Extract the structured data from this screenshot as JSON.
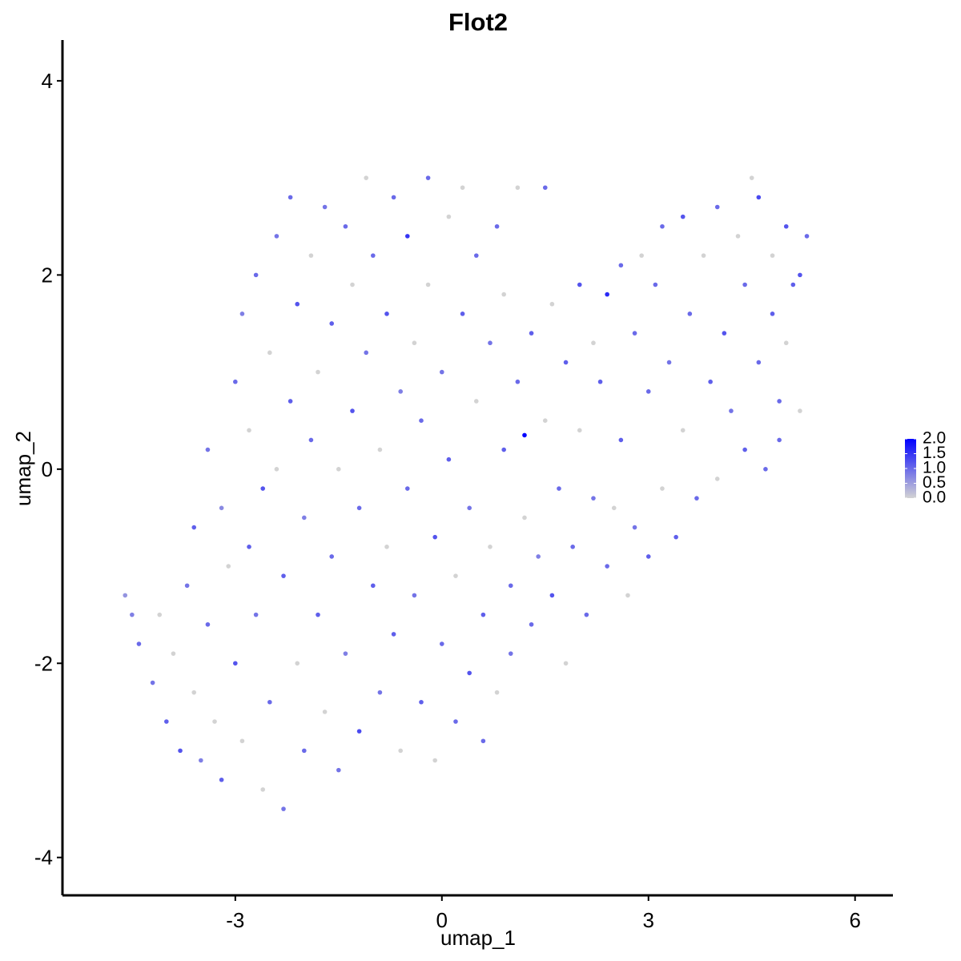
{
  "chart_data": {
    "type": "scatter",
    "title": "Flot2",
    "xlabel": "umap_1",
    "ylabel": "umap_2",
    "xlim": [
      -5.51,
      6.55
    ],
    "xticks": [
      -3,
      0,
      3,
      6
    ],
    "ylim": [
      -4.39,
      4.42
    ],
    "yticks": [
      -4,
      -2,
      0,
      2,
      4
    ],
    "x": [
      -4.6,
      -4.5,
      -4.4,
      -4.2,
      -4.1,
      -4.0,
      -3.9,
      -3.8,
      -3.7,
      -3.6,
      -3.6,
      -3.5,
      -3.4,
      -3.4,
      -3.3,
      -3.2,
      -3.2,
      -3.1,
      -3.0,
      -3.0,
      -2.9,
      -2.9,
      -2.8,
      -2.8,
      -2.7,
      -2.7,
      -2.6,
      -2.6,
      -2.5,
      -2.5,
      -2.4,
      -2.4,
      -2.3,
      -2.3,
      -2.2,
      -2.2,
      -2.1,
      -2.1,
      -2.0,
      -2.0,
      -1.9,
      -1.9,
      -1.8,
      -1.8,
      -1.7,
      -1.7,
      -1.6,
      -1.6,
      -1.5,
      -1.5,
      -1.4,
      -1.4,
      -1.3,
      -1.3,
      -1.2,
      -1.2,
      -1.1,
      -1.1,
      -1.0,
      -1.0,
      -0.9,
      -0.9,
      -0.8,
      -0.8,
      -0.7,
      -0.7,
      -0.6,
      -0.6,
      -0.5,
      -0.5,
      -0.4,
      -0.4,
      -0.3,
      -0.3,
      -0.2,
      -0.2,
      -0.1,
      -0.1,
      0.0,
      0.0,
      0.1,
      0.1,
      0.2,
      0.2,
      0.3,
      0.3,
      0.4,
      0.4,
      0.5,
      0.5,
      0.6,
      0.6,
      0.7,
      0.7,
      0.8,
      0.8,
      0.9,
      0.9,
      1.0,
      1.0,
      1.1,
      1.1,
      1.2,
      1.2,
      1.3,
      1.3,
      1.4,
      1.5,
      1.5,
      1.6,
      1.6,
      1.7,
      1.8,
      1.8,
      1.9,
      2.0,
      2.0,
      2.1,
      2.2,
      2.2,
      2.3,
      2.4,
      2.4,
      2.5,
      2.6,
      2.6,
      2.7,
      2.8,
      2.8,
      2.9,
      3.0,
      3.0,
      3.1,
      3.2,
      3.2,
      3.3,
      3.4,
      3.5,
      3.5,
      3.6,
      3.7,
      3.8,
      3.9,
      4.0,
      4.0,
      4.1,
      4.2,
      4.3,
      4.4,
      4.4,
      4.5,
      4.6,
      4.6,
      4.7,
      4.8,
      4.8,
      4.9,
      5.0,
      5.0,
      5.1,
      5.2,
      5.3,
      5.2,
      4.9
    ],
    "y": [
      -1.3,
      -1.5,
      -1.8,
      -2.2,
      -1.5,
      -2.6,
      -1.9,
      -2.9,
      -1.2,
      -0.6,
      -2.3,
      -3.0,
      -1.6,
      0.2,
      -2.6,
      -0.4,
      -3.2,
      -1.0,
      0.9,
      -2.0,
      1.6,
      -2.8,
      -0.8,
      0.4,
      2.0,
      -1.5,
      -3.3,
      -0.2,
      1.2,
      -2.4,
      2.4,
      0.0,
      -1.1,
      -3.5,
      2.8,
      0.7,
      -2.0,
      1.7,
      -0.5,
      -2.9,
      2.2,
      0.3,
      -1.5,
      1.0,
      2.7,
      -2.5,
      -0.9,
      1.5,
      0.0,
      -3.1,
      2.5,
      -1.9,
      0.6,
      1.9,
      -0.4,
      -2.7,
      3.0,
      1.2,
      -1.2,
      2.2,
      0.2,
      -2.3,
      1.6,
      -0.8,
      2.8,
      -1.7,
      0.8,
      -2.9,
      2.4,
      -0.2,
      1.3,
      -1.3,
      -2.4,
      0.5,
      3.0,
      1.9,
      -0.7,
      -3.0,
      1.0,
      -1.8,
      2.6,
      0.1,
      -1.1,
      -2.6,
      1.6,
      2.9,
      -0.4,
      -2.1,
      0.7,
      2.2,
      -1.5,
      -2.8,
      1.3,
      -0.8,
      2.5,
      -2.3,
      0.2,
      1.8,
      -1.2,
      -1.9,
      2.9,
      0.9,
      0.35,
      -0.5,
      1.4,
      -1.6,
      -0.9,
      2.9,
      0.5,
      -1.3,
      1.7,
      -0.2,
      -2.0,
      1.1,
      -0.8,
      1.9,
      0.4,
      -1.5,
      -0.3,
      1.3,
      0.9,
      1.8,
      -1.0,
      -0.4,
      2.1,
      0.3,
      -1.3,
      1.4,
      -0.6,
      2.2,
      0.8,
      -0.9,
      1.9,
      -0.2,
      2.5,
      1.1,
      -0.7,
      2.6,
      0.4,
      1.6,
      -0.3,
      2.2,
      0.9,
      2.7,
      -0.1,
      1.4,
      0.6,
      2.4,
      1.9,
      0.2,
      3.0,
      2.8,
      1.1,
      0.0,
      2.2,
      1.6,
      0.7,
      2.5,
      1.3,
      1.9,
      0.6,
      2.4,
      2.0,
      0.3
    ],
    "expression": [
      0.6,
      0.8,
      1.0,
      0.9,
      0,
      1.1,
      0,
      1.2,
      0.9,
      1.1,
      0,
      0.8,
      1.0,
      0.9,
      0,
      0.7,
      1.1,
      0,
      1.0,
      1.2,
      0.8,
      0,
      1.1,
      0,
      1.0,
      0.9,
      0,
      1.2,
      0,
      1.0,
      0.9,
      0,
      1.1,
      0.9,
      1.0,
      1.1,
      0,
      1.2,
      0.8,
      1.0,
      0,
      1.0,
      1.1,
      0,
      0.9,
      0,
      1.0,
      1.1,
      0,
      0.9,
      1.0,
      0.8,
      1.2,
      0,
      1.0,
      1.3,
      0,
      0.9,
      1.1,
      1.0,
      0,
      0.9,
      1.2,
      0,
      1.0,
      1.1,
      0.8,
      0,
      1.5,
      1.0,
      0,
      0.9,
      1.1,
      1.0,
      1.0,
      0,
      1.2,
      0,
      0.9,
      1.0,
      0,
      1.1,
      0,
      1.0,
      1.1,
      0,
      0.9,
      1.2,
      0,
      1.0,
      1.1,
      1.0,
      0.9,
      0,
      1.0,
      0,
      1.1,
      0,
      1.0,
      0.9,
      0,
      1.0,
      2.0,
      0,
      1.1,
      1.0,
      0.8,
      1.0,
      0,
      1.2,
      0,
      1.0,
      0,
      1.1,
      1.0,
      1.2,
      0,
      1.0,
      0.9,
      0,
      1.1,
      1.6,
      1.0,
      0,
      1.0,
      1.1,
      0,
      1.0,
      0.9,
      0,
      1.0,
      1.1,
      1.0,
      0,
      1.0,
      0.9,
      1.1,
      1.2,
      0,
      1.0,
      1.0,
      0,
      1.1,
      1.0,
      0,
      1.2,
      0.9,
      0,
      1.0,
      1.1,
      0,
      1.3,
      1.0,
      1.0,
      0,
      1.1,
      1.0,
      1.2,
      0,
      1.1,
      0,
      1.0,
      1.2,
      1.0
    ],
    "colorscale": {
      "low": "#d3d3d3",
      "high": "#0000ff"
    },
    "clim": [
      0,
      2
    ],
    "cticks": [
      {
        "value": 0,
        "label": "0.0"
      },
      {
        "value": 0.5,
        "label": "0.5"
      },
      {
        "value": 1,
        "label": "1.0"
      },
      {
        "value": 1.5,
        "label": "1.5"
      },
      {
        "value": 2,
        "label": "2.0"
      }
    ]
  }
}
